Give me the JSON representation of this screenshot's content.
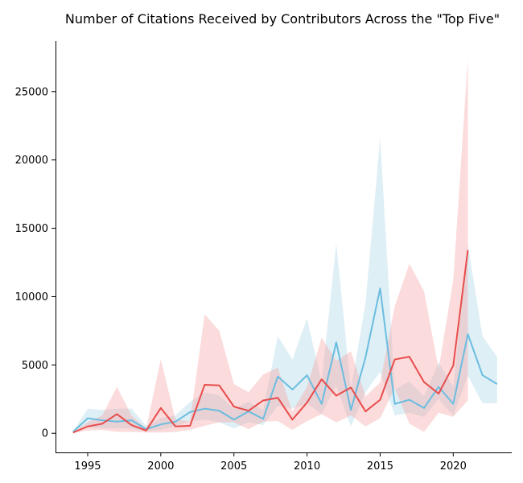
{
  "chart_data": {
    "type": "line",
    "title": "Number of Citations Received by Contributors Across the \"Top Five\"",
    "xlabel": "",
    "ylabel": "",
    "xlim": [
      1992.8,
      2024.0
    ],
    "ylim": [
      -1400,
      28700
    ],
    "x_ticks": [
      1995,
      2000,
      2005,
      2010,
      2015,
      2020
    ],
    "y_ticks": [
      0,
      5000,
      10000,
      15000,
      20000,
      25000
    ],
    "grid": false,
    "legend": "none",
    "series": [
      {
        "color": "#6bbde0",
        "band_color": "#add8e6",
        "x": [
          1994,
          1995,
          1996,
          1997,
          1998,
          1999,
          2000,
          2001,
          2002,
          2003,
          2004,
          2005,
          2006,
          2007,
          2008,
          2009,
          2010,
          2011,
          2012,
          2013,
          2014,
          2015,
          2016,
          2017,
          2018,
          2019,
          2020,
          2021,
          2022,
          2023
        ],
        "values": [
          100,
          1100,
          950,
          850,
          950,
          300,
          650,
          850,
          1550,
          1800,
          1650,
          1000,
          1600,
          1050,
          4150,
          3200,
          4250,
          2150,
          6650,
          1700,
          5550,
          10600,
          2150,
          2450,
          1850,
          3400,
          2150,
          7250,
          4250,
          3600
        ],
        "lower": [
          50,
          450,
          350,
          350,
          350,
          150,
          250,
          500,
          900,
          1000,
          800,
          350,
          800,
          600,
          2000,
          1800,
          2200,
          1400,
          3500,
          500,
          3000,
          4500,
          1300,
          1500,
          1200,
          2500,
          1300,
          4200,
          2200,
          2200
        ],
        "upper": [
          150,
          1800,
          1700,
          1800,
          1800,
          550,
          1100,
          1300,
          2300,
          3000,
          2800,
          1800,
          2300,
          1700,
          7100,
          5400,
          8400,
          3700,
          13900,
          3200,
          9500,
          21600,
          3200,
          3800,
          2700,
          5200,
          3400,
          13800,
          7100,
          5600
        ]
      },
      {
        "color": "#e84c4c",
        "band_color": "#f4a6a6",
        "x": [
          1994,
          1995,
          1996,
          1997,
          1998,
          1999,
          2000,
          2001,
          2002,
          2003,
          2004,
          2005,
          2006,
          2007,
          2008,
          2009,
          2010,
          2011,
          2012,
          2013,
          2014,
          2015,
          2016,
          2017,
          2018,
          2019,
          2020,
          2021
        ],
        "values": [
          50,
          500,
          700,
          1400,
          600,
          200,
          1850,
          500,
          550,
          3550,
          3500,
          1950,
          1650,
          2400,
          2600,
          1000,
          2250,
          3950,
          2750,
          3350,
          1600,
          2450,
          5400,
          5600,
          3750,
          2900,
          4950,
          13400
        ],
        "lower": [
          20,
          200,
          250,
          100,
          100,
          50,
          50,
          100,
          250,
          550,
          800,
          800,
          300,
          850,
          900,
          250,
          900,
          1400,
          800,
          1300,
          500,
          1100,
          3300,
          700,
          100,
          1500,
          1200,
          2400
        ],
        "upper": [
          100,
          800,
          1300,
          3400,
          1300,
          350,
          5400,
          1000,
          900,
          8700,
          7500,
          3600,
          3000,
          4300,
          4800,
          1600,
          3400,
          7000,
          5300,
          6000,
          2700,
          3700,
          9300,
          12400,
          10400,
          4700,
          11200,
          27400
        ]
      }
    ]
  }
}
